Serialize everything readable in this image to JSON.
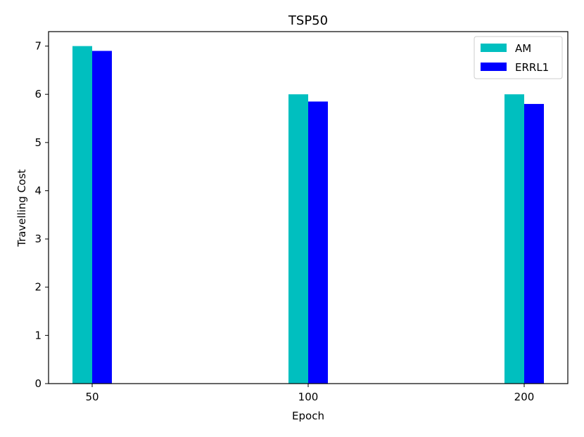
{
  "chart_data": {
    "type": "bar",
    "title": "TSP50",
    "xlabel": "Epoch",
    "ylabel": "Travelling Cost",
    "categories": [
      "50",
      "100",
      "200"
    ],
    "series": [
      {
        "name": "AM",
        "values": [
          7.0,
          6.0,
          6.0
        ],
        "color": "#00bfbf"
      },
      {
        "name": "ERRL1",
        "values": [
          6.9,
          5.85,
          5.8
        ],
        "color": "#0000ff"
      }
    ],
    "ylim": [
      0,
      7.3
    ],
    "yticks": [
      0,
      1,
      2,
      3,
      4,
      5,
      6,
      7
    ],
    "grid": false,
    "legend": "top-right"
  }
}
